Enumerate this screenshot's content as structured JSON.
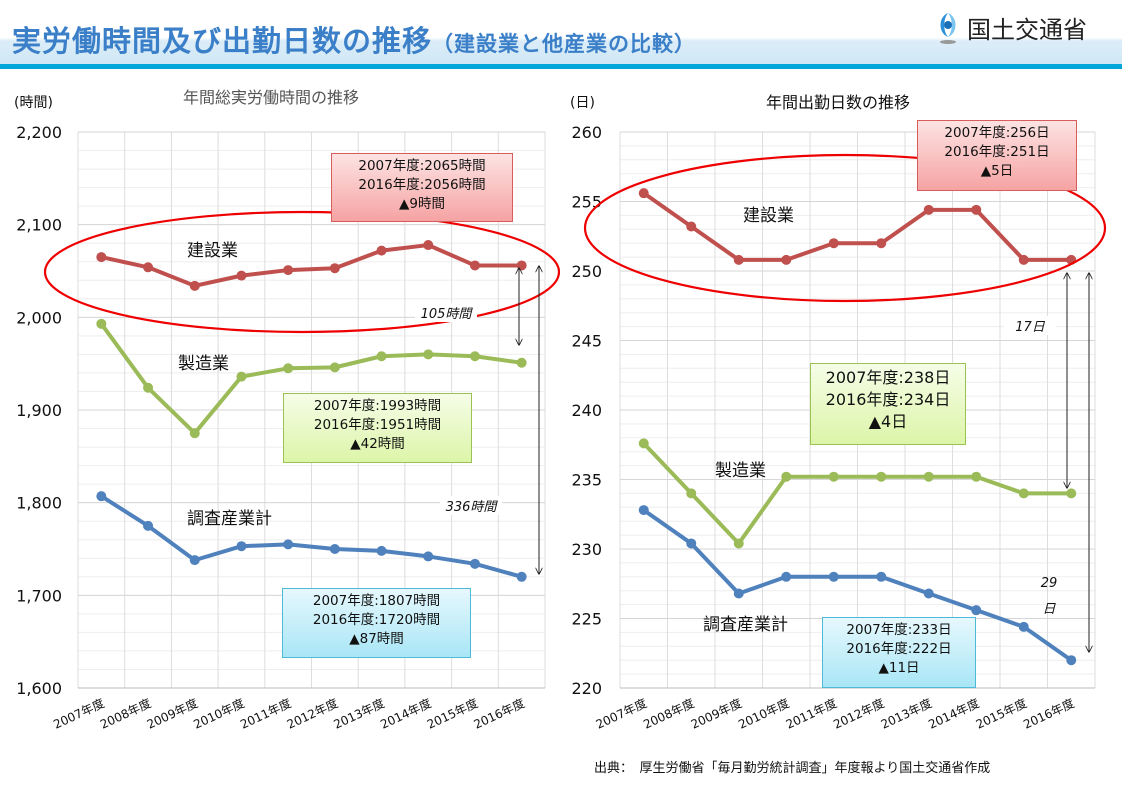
{
  "header": {
    "title_main": "実労働時間及び出勤日数の推移",
    "title_sub": "（建設業と他産業の比較）",
    "logo_text": "国土交通省"
  },
  "chart_data": [
    {
      "type": "line",
      "title": "年間総実労働時間の推移",
      "ylabel": "(時間)",
      "ylim": [
        1600,
        2200
      ],
      "yticks": [
        "1,600",
        "1,700",
        "1,800",
        "1,900",
        "2,000",
        "2,100",
        "2,200"
      ],
      "grid": true,
      "categories": [
        "2007年度",
        "2008年度",
        "2009年度",
        "2010年度",
        "2011年度",
        "2012年度",
        "2013年度",
        "2014年度",
        "2015年度",
        "2016年度"
      ],
      "series": [
        {
          "name": "建設業",
          "color": "#c0504d",
          "values": [
            2065,
            2054,
            2034,
            2045,
            2051,
            2053,
            2072,
            2078,
            2056,
            2056
          ]
        },
        {
          "name": "製造業",
          "color": "#9bbb59",
          "values": [
            1993,
            1924,
            1875,
            1936,
            1945,
            1946,
            1958,
            1960,
            1958,
            1951
          ]
        },
        {
          "name": "調査産業計",
          "color": "#4f81bd",
          "values": [
            1807,
            1775,
            1738,
            1753,
            1755,
            1750,
            1748,
            1742,
            1734,
            1720
          ]
        }
      ],
      "boxes": [
        {
          "lines": [
            "2007年度:2065時間",
            "2016年度:2056時間",
            "▲9時間"
          ]
        },
        {
          "lines": [
            "2007年度:1993時間",
            "2016年度:1951時間",
            "▲42時間"
          ]
        },
        {
          "lines": [
            "2007年度:1807時間",
            "2016年度:1720時間",
            "▲87時間"
          ]
        }
      ],
      "gaps": [
        "105時間",
        "336時間"
      ]
    },
    {
      "type": "line",
      "title": "年間出勤日数の推移",
      "ylabel": "(日)",
      "ylim": [
        220,
        260
      ],
      "yticks": [
        "220",
        "225",
        "230",
        "235",
        "240",
        "245",
        "250",
        "255",
        "260"
      ],
      "grid": true,
      "categories": [
        "2007年度",
        "2008年度",
        "2009年度",
        "2010年度",
        "2011年度",
        "2012年度",
        "2013年度",
        "2014年度",
        "2015年度",
        "2016年度"
      ],
      "series": [
        {
          "name": "建設業",
          "color": "#c0504d",
          "values": [
            255.6,
            253.2,
            250.8,
            250.8,
            252.0,
            252.0,
            254.4,
            254.4,
            250.8,
            250.8
          ]
        },
        {
          "name": "製造業",
          "color": "#9bbb59",
          "values": [
            237.6,
            234.0,
            230.4,
            235.2,
            235.2,
            235.2,
            235.2,
            235.2,
            234.0,
            234.0
          ]
        },
        {
          "name": "調査産業計",
          "color": "#4f81bd",
          "values": [
            232.8,
            230.4,
            226.8,
            228.0,
            228.0,
            228.0,
            226.8,
            225.6,
            224.4,
            222.0
          ]
        }
      ],
      "boxes": [
        {
          "lines": [
            "2007年度:256日",
            "2016年度:251日",
            "▲5日"
          ]
        },
        {
          "lines": [
            "2007年度:238日",
            "2016年度:234日",
            "▲4日"
          ]
        },
        {
          "lines": [
            "2007年度:233日",
            "2016年度:222日",
            "▲11日"
          ]
        }
      ],
      "gaps": [
        "17日",
        "29",
        "日"
      ]
    }
  ],
  "source": "出典：　厚生労働省「毎月勤労統計調査」年度報より国土交通省作成"
}
